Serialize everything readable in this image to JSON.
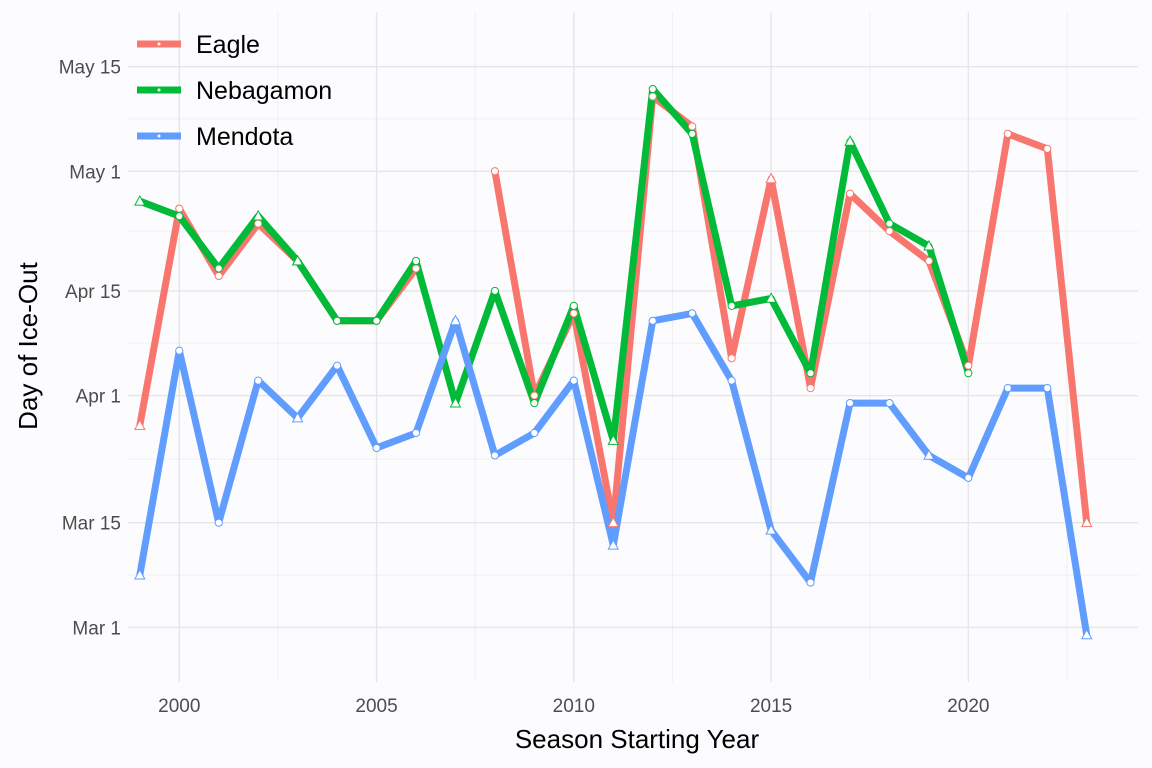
{
  "chart_data": {
    "type": "line",
    "title": "",
    "xlabel": "Season Starting Year",
    "ylabel": "Day of Ice-Out",
    "xlim": [
      1998.7,
      2024.3
    ],
    "ylim": [
      52.7,
      142.3
    ],
    "x_ticks": [
      2000,
      2005,
      2010,
      2015,
      2020
    ],
    "x_tick_labels": [
      "2000",
      "2005",
      "2010",
      "2015",
      "2020"
    ],
    "y_ticks": [
      60,
      74,
      91,
      105,
      121,
      135
    ],
    "y_tick_labels": [
      "Mar 1",
      "Mar 15",
      "Apr 1",
      "Apr 15",
      "May 1",
      "May 15"
    ],
    "grid": true,
    "legend_position": "top-left",
    "x": [
      1999,
      2000,
      2001,
      2002,
      2003,
      2004,
      2005,
      2006,
      2007,
      2008,
      2009,
      2010,
      2011,
      2012,
      2013,
      2014,
      2015,
      2016,
      2017,
      2018,
      2019,
      2020,
      2021,
      2022,
      2023
    ],
    "series": [
      {
        "name": "Eagle",
        "color": "#f8766d",
        "values": [
          87,
          116,
          107,
          114,
          109,
          101,
          101,
          108,
          null,
          121,
          91,
          102,
          74,
          131,
          127,
          96,
          120,
          92,
          118,
          113,
          109,
          95,
          126,
          124,
          74
        ],
        "markers": [
          "triangle",
          "circle",
          "circle",
          "circle",
          "triangle",
          "circle",
          "circle",
          "circle",
          null,
          "circle",
          "circle",
          "circle",
          "triangle",
          "circle",
          "circle",
          "circle",
          "triangle",
          "circle",
          "circle",
          "circle",
          "circle",
          "circle",
          "circle",
          "circle",
          "triangle"
        ]
      },
      {
        "name": "Nebagamon",
        "color": "#00ba38",
        "values": [
          117,
          115,
          108,
          115,
          109,
          101,
          101,
          109,
          90,
          105,
          90,
          103,
          85,
          132,
          126,
          103,
          104,
          94,
          125,
          114,
          111,
          94,
          null,
          null,
          null
        ],
        "markers": [
          "triangle",
          "circle",
          "circle",
          "triangle",
          "triangle",
          "circle",
          "circle",
          "circle",
          "triangle",
          "circle",
          "circle",
          "circle",
          "triangle",
          "circle",
          "circle",
          "circle",
          "triangle",
          "circle",
          "triangle",
          "circle",
          "triangle",
          "circle",
          null,
          null,
          null
        ]
      },
      {
        "name": "Mendota",
        "color": "#619cff",
        "values": [
          67,
          97,
          74,
          93,
          88,
          95,
          84,
          86,
          101,
          83,
          86,
          93,
          71,
          101,
          102,
          93,
          73,
          66,
          90,
          90,
          83,
          80,
          92,
          92,
          59
        ],
        "markers": [
          "triangle",
          "circle",
          "circle",
          "circle",
          "triangle",
          "circle",
          "circle",
          "circle",
          "triangle",
          "circle",
          "circle",
          "circle",
          "triangle",
          "circle",
          "circle",
          "circle",
          "triangle",
          "circle",
          "circle",
          "circle",
          "triangle",
          "circle",
          "circle",
          "circle",
          "triangle"
        ]
      }
    ]
  }
}
